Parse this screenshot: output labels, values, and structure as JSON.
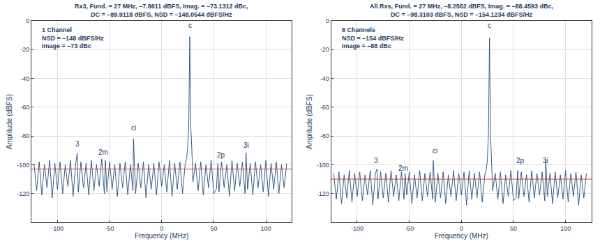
{
  "chart_data": [
    {
      "type": "line",
      "title": [
        "Rx3, Fund. = 27 MHz, –7.8611 dBFS, Imag. = –73.1312 dBc,",
        "DC = –89.9118 dBFS, NSD = –148.0544 dBFS/Hz"
      ],
      "x_label": "Frequency (MHz)",
      "y_label": "Amplitude (dBFS)",
      "xlim": [
        -125,
        125
      ],
      "xticks": [
        -100,
        -50,
        0,
        50,
        100
      ],
      "ylim": [
        -140,
        0
      ],
      "yticks": [
        0,
        -20,
        -40,
        -60,
        -80,
        -100,
        -120
      ],
      "grid": true,
      "series": [
        {
          "color": "#1f4e79",
          "x": [
            -122.5,
            -120,
            -117.5,
            -115,
            -112.5,
            -110,
            -107.5,
            -105,
            -102.5,
            -100,
            -97.5,
            -95,
            -92.5,
            -90,
            -87.5,
            -85,
            -82.5,
            -81,
            -80,
            -77.5,
            -75,
            -72.5,
            -70,
            -67.5,
            -65,
            -62.5,
            -60,
            -57.5,
            -55,
            -54,
            -52.5,
            -50,
            -47.5,
            -45,
            -42.5,
            -40,
            -37.5,
            -35,
            -32.5,
            -30,
            -27.5,
            -27,
            -25,
            -22.5,
            -20,
            -17.5,
            -15,
            -12.5,
            -10,
            -7.5,
            -5,
            -2.5,
            0,
            2.5,
            5,
            7.5,
            10,
            12.5,
            15,
            17.5,
            20,
            22.5,
            24,
            25,
            26,
            26.5,
            27,
            27.5,
            28,
            29,
            30,
            32.5,
            35,
            37.5,
            40,
            42.5,
            45,
            47.5,
            50,
            52.5,
            54,
            55,
            57.5,
            60,
            62.5,
            65,
            67.5,
            70,
            72.5,
            75,
            77.5,
            80,
            81,
            82.5,
            85,
            87.5,
            90,
            92.5,
            95,
            97.5,
            100,
            102.5,
            105,
            107.5,
            110,
            112.5,
            115,
            117.5,
            120
          ],
          "values": [
            -99,
            -118,
            -98,
            -121,
            -100,
            -116,
            -97,
            -123,
            -99,
            -117,
            -98,
            -120,
            -100,
            -115,
            -97,
            -122,
            -99,
            -92,
            -119,
            -98,
            -116,
            -99,
            -121,
            -97,
            -118,
            -100,
            -115,
            -96,
            -120,
            -97,
            -119,
            -98,
            -117,
            -100,
            -122,
            -99,
            -116,
            -98,
            -121,
            -100,
            -118,
            -82,
            -120,
            -99,
            -116,
            -98,
            -123,
            -100,
            -117,
            -99,
            -121,
            -98,
            -115,
            -100,
            -119,
            -97,
            -122,
            -99,
            -117,
            -98,
            -120,
            -100,
            -95,
            -88,
            -72,
            -40,
            -11,
            -45,
            -74,
            -90,
            -112,
            -99,
            -118,
            -98,
            -121,
            -100,
            -116,
            -97,
            -120,
            -117,
            -99,
            -119,
            -98,
            -116,
            -100,
            -122,
            -97,
            -118,
            -99,
            -115,
            -98,
            -120,
            -92,
            -117,
            -99,
            -121,
            -98,
            -116,
            -100,
            -119,
            -97,
            -122,
            -99,
            -117,
            -98,
            -120,
            -100,
            -116,
            -99
          ]
        },
        {
          "color": "#e8262a",
          "x": [
            -125,
            125
          ],
          "values": [
            -103,
            -103
          ]
        }
      ],
      "annotations": [
        {
          "text": [
            "1 Channel",
            "NSD = –148 dBFS/Hz",
            "Image = –73 dBc"
          ],
          "x": -116,
          "y": -3
        },
        {
          "text": [
            "3"
          ],
          "x": -81,
          "y": -89
        },
        {
          "text": [
            "2m"
          ],
          "x": -56,
          "y": -95
        },
        {
          "text": [
            "ci"
          ],
          "x": -27,
          "y": -78
        },
        {
          "text": [
            "c"
          ],
          "x": 27,
          "y": -7
        },
        {
          "text": [
            "2p"
          ],
          "x": 57,
          "y": -97
        },
        {
          "text": [
            "3i"
          ],
          "x": 81,
          "y": -90
        }
      ]
    },
    {
      "type": "line",
      "title": [
        "All Rxs, Fund. = 27 MHz, –8.2562 dBFS, Imag. = –88.4593 dBc,",
        "DC = –98.3103 dBFS, NSD = –154.1234 dBFS/Hz"
      ],
      "x_label": "Frequency (MHz)",
      "y_label": "Amplitude (dBFS)",
      "xlim": [
        -125,
        125
      ],
      "xticks": [
        -100,
        -50,
        0,
        50,
        100
      ],
      "ylim": [
        -140,
        0
      ],
      "yticks": [
        0,
        -20,
        -40,
        -60,
        -80,
        -100,
        -120
      ],
      "grid": true,
      "series": [
        {
          "color": "#1f4e79",
          "x": [
            -122.5,
            -120,
            -117.5,
            -115,
            -112.5,
            -110,
            -107.5,
            -105,
            -102.5,
            -100,
            -97.5,
            -95,
            -92.5,
            -90,
            -87.5,
            -85,
            -82.5,
            -81,
            -80,
            -77.5,
            -75,
            -72.5,
            -70,
            -67.5,
            -65,
            -62.5,
            -60,
            -57.5,
            -55,
            -54,
            -52.5,
            -50,
            -47.5,
            -45,
            -42.5,
            -40,
            -37.5,
            -35,
            -32.5,
            -30,
            -27.5,
            -27,
            -25,
            -22.5,
            -20,
            -17.5,
            -15,
            -12.5,
            -10,
            -7.5,
            -5,
            -2.5,
            0,
            2.5,
            5,
            7.5,
            10,
            12.5,
            15,
            17.5,
            20,
            22.5,
            24,
            25,
            26,
            26.5,
            27,
            27.5,
            28,
            29,
            30,
            32.5,
            35,
            37.5,
            40,
            42.5,
            45,
            47.5,
            50,
            52.5,
            54,
            55,
            57.5,
            60,
            62.5,
            65,
            67.5,
            70,
            72.5,
            75,
            77.5,
            80,
            81,
            82.5,
            85,
            87.5,
            90,
            92.5,
            95,
            97.5,
            100,
            102.5,
            105,
            107.5,
            110,
            112.5,
            115,
            117.5,
            120
          ],
          "values": [
            -106,
            -124,
            -105,
            -127,
            -107,
            -123,
            -104,
            -126,
            -106,
            -122,
            -105,
            -125,
            -107,
            -121,
            -104,
            -128,
            -106,
            -103,
            -124,
            -105,
            -123,
            -106,
            -126,
            -104,
            -122,
            -107,
            -125,
            -105,
            -124,
            -106,
            -121,
            -105,
            -127,
            -107,
            -123,
            -104,
            -125,
            -106,
            -122,
            -105,
            -124,
            -97,
            -126,
            -106,
            -123,
            -105,
            -127,
            -107,
            -122,
            -104,
            -125,
            -106,
            -121,
            -105,
            -128,
            -104,
            -124,
            -106,
            -123,
            -105,
            -126,
            -107,
            -103,
            -96,
            -78,
            -45,
            -12,
            -50,
            -79,
            -98,
            -118,
            -106,
            -124,
            -105,
            -127,
            -107,
            -122,
            -104,
            -125,
            -123,
            -104,
            -124,
            -105,
            -122,
            -107,
            -126,
            -104,
            -123,
            -106,
            -121,
            -105,
            -125,
            -96,
            -122,
            -106,
            -127,
            -105,
            -123,
            -107,
            -124,
            -104,
            -126,
            -106,
            -122,
            -105,
            -128,
            -107,
            -123,
            -106
          ]
        },
        {
          "color": "#e8262a",
          "x": [
            -125,
            125
          ],
          "values": [
            -110,
            -110
          ]
        }
      ],
      "annotations": [
        {
          "text": [
            "8 Channels",
            "NSD = –154 dBFS/Hz",
            "Image = –88 dBc"
          ],
          "x": -116,
          "y": -3
        },
        {
          "text": [
            "3"
          ],
          "x": -82,
          "y": -101
        },
        {
          "text": [
            "2m"
          ],
          "x": -56,
          "y": -106
        },
        {
          "text": [
            "ci"
          ],
          "x": -25,
          "y": -94
        },
        {
          "text": [
            "c"
          ],
          "x": 27,
          "y": -7
        },
        {
          "text": [
            "2p"
          ],
          "x": 57,
          "y": -101
        },
        {
          "text": [
            "3i"
          ],
          "x": 81,
          "y": -101
        }
      ]
    }
  ]
}
